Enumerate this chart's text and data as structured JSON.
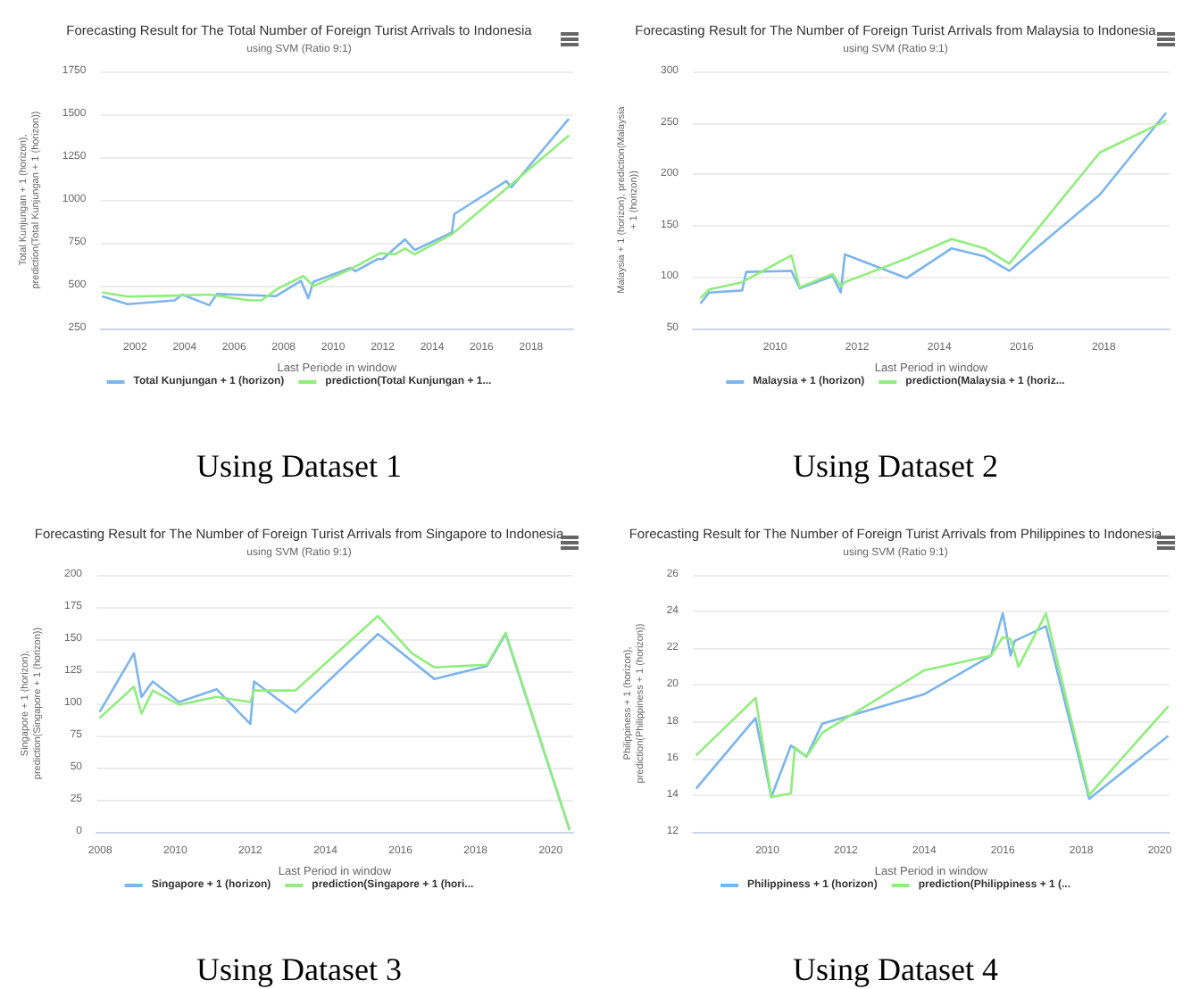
{
  "chart_data": [
    {
      "type": "line",
      "title": "Forecasting Result for The Total Number of Foreign Turist Arrivals to Indonesia",
      "subtitle": "using SVM (Ratio 9:1)",
      "xlabel": "Last Periode in window",
      "ylabel": "Total Kunjungan + 1 (horizon), prediction(Total Kunjungan + 1 (horizon))",
      "annotations": [
        "Using Dataset 1"
      ],
      "xlim": [
        2000.6,
        2019.7
      ],
      "xticks": [
        2002,
        2004,
        2006,
        2008,
        2010,
        2012,
        2014,
        2016,
        2018
      ],
      "ylim": [
        250,
        1750
      ],
      "yticks": [
        250,
        500,
        750,
        1000,
        1250,
        1500,
        1750
      ],
      "grid": "y",
      "legend": "bottom",
      "marker": "none",
      "line_style": "solid",
      "series": [
        {
          "name": "Total Kunjungan + 1 (horizon)",
          "color": "#7cb5ec",
          "x": [
            2000.7,
            2001.7,
            2003.6,
            2003.9,
            2005.0,
            2005.3,
            2007.7,
            2008.7,
            2009.0,
            2009.2,
            2010.7,
            2010.9,
            2011.8,
            2012.0,
            2012.9,
            2013.3,
            2014.8,
            2014.9,
            2017.0,
            2017.2,
            2019.5
          ],
          "values": [
            436,
            392,
            414,
            448,
            386,
            451,
            439,
            528,
            426,
            522,
            603,
            584,
            655,
            655,
            770,
            708,
            810,
            918,
            1110,
            1073,
            1469
          ]
        },
        {
          "name": "prediction(Total Kunjungan + 1...",
          "color": "#90ed7d",
          "x": [
            2000.7,
            2001.7,
            2003.7,
            2005.0,
            2006.6,
            2007.1,
            2007.8,
            2008.8,
            2009.2,
            2010.7,
            2011.9,
            2012.5,
            2012.9,
            2013.3,
            2014.8,
            2017.0,
            2019.5
          ],
          "values": [
            460,
            436,
            442,
            448,
            414,
            414,
            485,
            556,
            497,
            596,
            689,
            683,
            717,
            683,
            800,
            1067,
            1373
          ]
        }
      ]
    },
    {
      "type": "line",
      "title": "Forecasting Result for The Number of Foreign Turist Arrivals from Malaysia to Indonesia",
      "subtitle": "using SVM (Ratio 9:1)",
      "xlabel": "Last Period in window",
      "ylabel": "Malaysia + 1 (horizon), prediction(Malaysia + 1 (horizon))",
      "annotations": [
        "Using Dataset 2"
      ],
      "xlim": [
        2008.0,
        2019.6
      ],
      "xticks": [
        2010,
        2012,
        2014,
        2016,
        2018
      ],
      "ylim": [
        50,
        300
      ],
      "yticks": [
        50,
        100,
        150,
        200,
        250,
        300
      ],
      "grid": "y",
      "legend": "bottom",
      "marker": "none",
      "line_style": "solid",
      "series": [
        {
          "name": "Malaysia + 1 (horizon)",
          "color": "#7cb5ec",
          "x": [
            2008.2,
            2008.4,
            2009.2,
            2009.3,
            2010.4,
            2010.6,
            2011.4,
            2011.6,
            2011.7,
            2013.2,
            2014.3,
            2015.1,
            2015.7,
            2017.9,
            2019.5
          ],
          "values": [
            75,
            85,
            87,
            105,
            106,
            89,
            101,
            85,
            122,
            99,
            128,
            120,
            106,
            180,
            259
          ]
        },
        {
          "name": "prediction(Malaysia + 1 (horiz...",
          "color": "#90ed7d",
          "x": [
            2008.2,
            2008.4,
            2009.2,
            2010.4,
            2010.6,
            2011.4,
            2011.6,
            2011.7,
            2013.2,
            2014.3,
            2015.1,
            2015.7,
            2017.9,
            2019.5
          ],
          "values": [
            80,
            88,
            95,
            121,
            90,
            103,
            91,
            95,
            118,
            137,
            128,
            113,
            221,
            252
          ]
        }
      ]
    },
    {
      "type": "line",
      "title": "Forecasting Result for The Number of Foreign Turist Arrivals from Singapore to Indonesia",
      "subtitle": "using SVM (Ratio 9:1)",
      "xlabel": "Last Period in window",
      "ylabel": "Singapore + 1 (horizon), prediction(Singapore + 1 (horizon))",
      "annotations": [
        "Using Dataset 3"
      ],
      "xlim": [
        2007.9,
        2020.6
      ],
      "xticks": [
        2008,
        2010,
        2012,
        2014,
        2016,
        2018,
        2020
      ],
      "ylim": [
        0,
        200
      ],
      "yticks": [
        0,
        25,
        50,
        75,
        100,
        125,
        150,
        175,
        200
      ],
      "grid": "y",
      "legend": "bottom",
      "marker": "none",
      "line_style": "solid",
      "series": [
        {
          "name": "Singapore + 1 (horizon)",
          "color": "#7cb5ec",
          "x": [
            2008.0,
            2008.9,
            2009.1,
            2009.4,
            2010.1,
            2011.1,
            2012.0,
            2012.1,
            2013.2,
            2015.4,
            2016.9,
            2018.3,
            2018.8,
            2020.5
          ],
          "values": [
            94,
            139,
            105,
            117,
            101,
            111,
            84,
            117,
            93,
            154,
            119,
            129,
            154,
            2
          ]
        },
        {
          "name": "prediction(Singapore + 1 (hori...",
          "color": "#90ed7d",
          "x": [
            2008.0,
            2008.9,
            2009.1,
            2009.4,
            2010.1,
            2011.1,
            2012.0,
            2012.1,
            2013.2,
            2015.4,
            2016.3,
            2016.9,
            2018.3,
            2018.8,
            2020.5
          ],
          "values": [
            89,
            113,
            92,
            110,
            99,
            105,
            101,
            110,
            110,
            168,
            139,
            128,
            130,
            155,
            2
          ]
        }
      ]
    },
    {
      "type": "line",
      "title": "Forecasting Result for The Number of Foreign Turist Arrivals from Philippines to Indonesia",
      "subtitle": "using SVM (Ratio 9:1)",
      "xlabel": "Last Period in window",
      "ylabel": "Philippiness + 1 (horizon), prediction(Philippiness + 1 (horizon))",
      "annotations": [
        "Using Dataset 4"
      ],
      "xlim": [
        2008.1,
        2020.25
      ],
      "xticks": [
        2010,
        2012,
        2014,
        2016,
        2018,
        2020
      ],
      "ylim": [
        12,
        26
      ],
      "yticks": [
        12,
        14,
        16,
        18,
        20,
        22,
        24,
        26
      ],
      "grid": "y",
      "legend": "bottom",
      "marker": "none",
      "line_style": "solid",
      "series": [
        {
          "name": "Philippiness + 1 (horizon)",
          "color": "#7cb5ec",
          "x": [
            2008.2,
            2009.7,
            2010.1,
            2010.6,
            2011.0,
            2011.4,
            2014.0,
            2015.7,
            2016.0,
            2016.2,
            2016.3,
            2017.1,
            2018.2,
            2020.2
          ],
          "values": [
            14.4,
            18.2,
            13.9,
            16.7,
            16.1,
            17.9,
            19.5,
            21.6,
            23.9,
            21.6,
            22.4,
            23.2,
            13.8,
            17.2
          ]
        },
        {
          "name": "prediction(Philippiness + 1 (...",
          "color": "#90ed7d",
          "x": [
            2008.2,
            2009.7,
            2010.1,
            2010.6,
            2010.7,
            2011.0,
            2011.4,
            2014.0,
            2015.7,
            2016.0,
            2016.2,
            2016.4,
            2017.1,
            2018.2,
            2020.2
          ],
          "values": [
            16.2,
            19.3,
            13.9,
            14.1,
            16.6,
            16.1,
            17.4,
            20.8,
            21.6,
            22.6,
            22.5,
            21.0,
            23.9,
            14.0,
            18.8
          ]
        }
      ]
    }
  ]
}
